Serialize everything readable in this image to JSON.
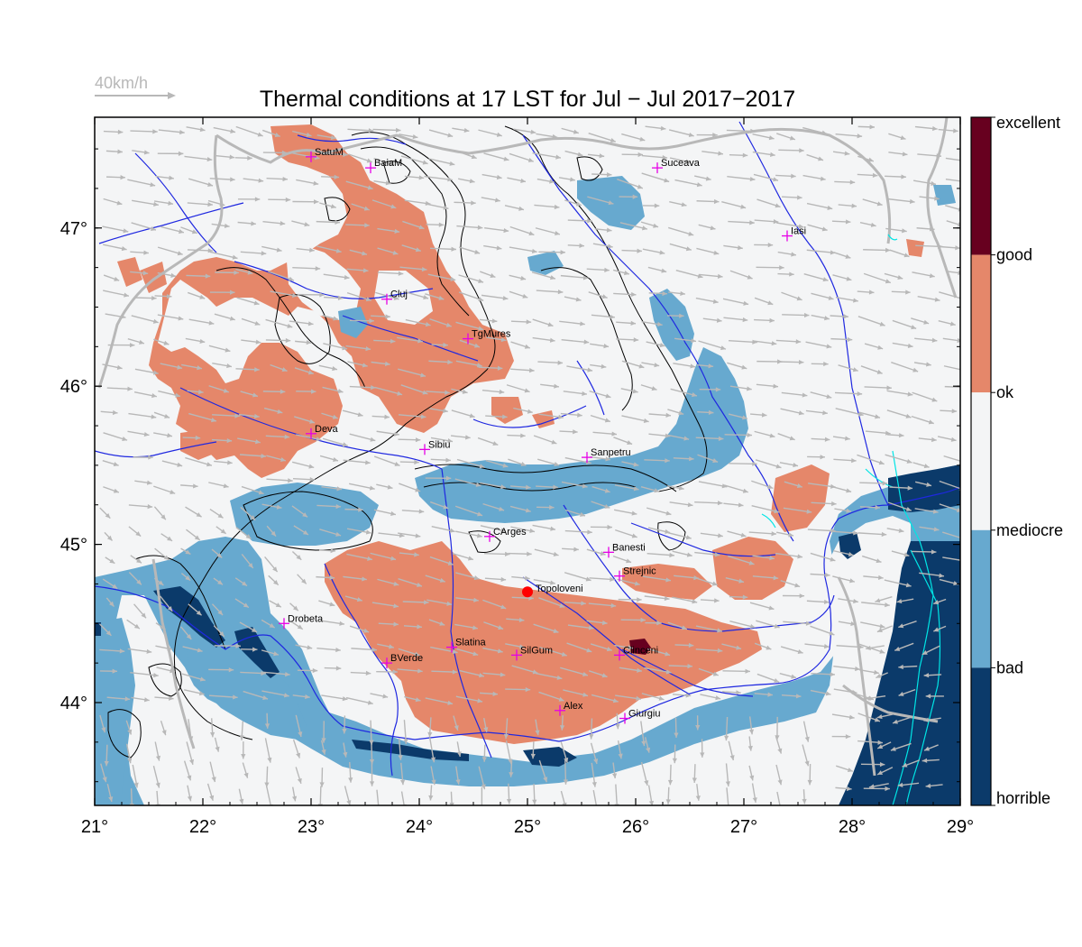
{
  "title": "Thermal conditions at 17 LST for Jul − Jul  2017−2017",
  "wind_reference": {
    "label": "40km/h"
  },
  "axes": {
    "lon_ticks": [
      "21°",
      "22°",
      "23°",
      "24°",
      "25°",
      "26°",
      "27°",
      "28°",
      "29°"
    ],
    "lat_ticks": [
      "44°",
      "45°",
      "46°",
      "47°"
    ]
  },
  "legend": {
    "categories": [
      {
        "label": "excellent",
        "color": "#67001f"
      },
      {
        "label": "good",
        "color": "#e5876a"
      },
      {
        "label": "ok",
        "color": "#f4f5f6"
      },
      {
        "label": "mediocre",
        "color": "#67a9cf"
      },
      {
        "label": "bad",
        "color": "#0b3a6a"
      },
      {
        "label": "horrible",
        "color": "#0b3a6a"
      }
    ]
  },
  "map": {
    "lon_range": [
      21,
      29
    ],
    "lat_range": [
      43.35,
      47.7
    ],
    "cities": [
      {
        "name": "SatuM",
        "lon": 23.0,
        "lat": 47.45
      },
      {
        "name": "BaiaM",
        "lon": 23.55,
        "lat": 47.38
      },
      {
        "name": "Suceava",
        "lon": 26.2,
        "lat": 47.38
      },
      {
        "name": "Iasi",
        "lon": 27.4,
        "lat": 46.95
      },
      {
        "name": "Cluj",
        "lon": 23.7,
        "lat": 46.55
      },
      {
        "name": "TgMures",
        "lon": 24.45,
        "lat": 46.3
      },
      {
        "name": "Deva",
        "lon": 23.0,
        "lat": 45.7
      },
      {
        "name": "Sibiu",
        "lon": 24.05,
        "lat": 45.6
      },
      {
        "name": "Sanpetru",
        "lon": 25.55,
        "lat": 45.55
      },
      {
        "name": "CArges",
        "lon": 24.65,
        "lat": 45.05
      },
      {
        "name": "Banesti",
        "lon": 25.75,
        "lat": 44.95
      },
      {
        "name": "Strejnic",
        "lon": 25.85,
        "lat": 44.8
      },
      {
        "name": "Drobeta",
        "lon": 22.75,
        "lat": 44.5
      },
      {
        "name": "Slatina",
        "lon": 24.3,
        "lat": 44.35
      },
      {
        "name": "SilGum",
        "lon": 24.9,
        "lat": 44.3
      },
      {
        "name": "Clinceni",
        "lon": 25.85,
        "lat": 44.3
      },
      {
        "name": "BVerde",
        "lon": 23.7,
        "lat": 44.25
      },
      {
        "name": "Alex",
        "lon": 25.3,
        "lat": 43.95
      },
      {
        "name": "Giurgiu",
        "lon": 25.9,
        "lat": 43.9
      }
    ],
    "highlight": {
      "name": "Topoloveni",
      "lon": 25.0,
      "lat": 44.7
    }
  }
}
